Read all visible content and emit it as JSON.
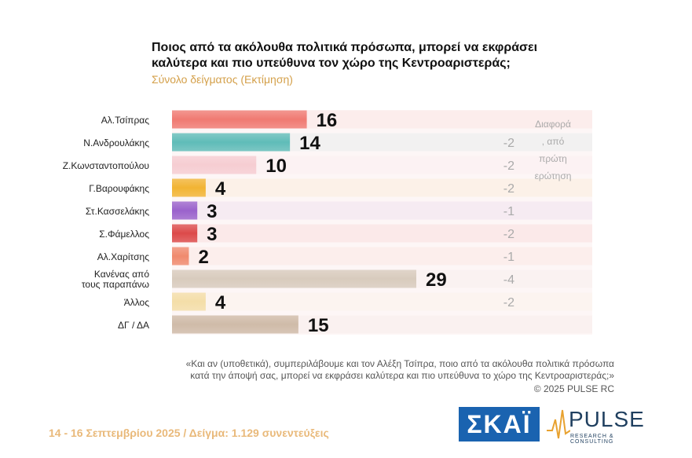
{
  "header": {
    "title_line1": "Ποιος από τα ακόλουθα πολιτικά πρόσωπα, μπορεί να εκφράσει",
    "title_line2": "καλύτερα και πιο υπεύθυνα τον χώρο της Κεντροαριστεράς;",
    "subtitle": "Σύνολο δείγματος   (Εκτίμηση)"
  },
  "chart_data": {
    "type": "bar",
    "orientation": "horizontal",
    "categories": [
      "Αλ.Τσίπρας",
      "Ν.Ανδρουλάκης",
      "Ζ.Κωνσταντοπούλου",
      "Γ.Βαρουφάκης",
      "Στ.Κασσελάκης",
      "Σ.Φάμελλος",
      "Αλ.Χαρίτσης",
      "Κανένας από τους παραπάνω",
      "Άλλος",
      "ΔΓ / ΔΑ"
    ],
    "category_lines": [
      [
        "Αλ.Τσίπρας"
      ],
      [
        "Ν.Ανδρουλάκης"
      ],
      [
        "Ζ.Κωνσταντοπούλου"
      ],
      [
        "Γ.Βαρουφάκης"
      ],
      [
        "Στ.Κασσελάκης"
      ],
      [
        "Σ.Φάμελλος"
      ],
      [
        "Αλ.Χαρίτσης"
      ],
      [
        "Κανένας από",
        "τους παραπάνω"
      ],
      [
        "Άλλος"
      ],
      [
        "ΔΓ / ΔΑ"
      ]
    ],
    "values": [
      16,
      14,
      10,
      4,
      3,
      3,
      2,
      29,
      4,
      15
    ],
    "bar_colors": [
      "#f07a72",
      "#5fbcb8",
      "#f6cdd2",
      "#f2b433",
      "#9a62cc",
      "#dc4a4a",
      "#f08a6e",
      "#d8cbbd",
      "#f4dea8",
      "#cfbba8"
    ],
    "diff_header_lines": [
      "Διαφορά",
      ", από",
      "πρώτη",
      "ερώτηση"
    ],
    "diff_values": [
      "",
      "-2",
      "-2",
      "-2",
      "-1",
      "-2",
      "-1",
      "-4",
      "-2",
      ""
    ],
    "xlim": [
      0,
      29
    ]
  },
  "footnote": {
    "line1": "«Και αν (υποθετικά), συμπεριλάβουμε και τον Αλέξη Τσίπρα, ποιο από τα ακόλουθα πολιτικά πρόσωπα",
    "line2": "κατά την άποψή σας, μπορεί να εκφράσει καλύτερα και πιο υπεύθυνα το χώρο της Κεντροαριστεράς;»",
    "copyright": "©  2025  PULSE RC"
  },
  "survey_info": "14 - 16 Σεπτεμβρίου 2025  /  Δείγμα:  1.129 συνεντεύξεις",
  "logos": {
    "skai": "ΣΚΑΪ",
    "pulse": "PULSE",
    "pulse_tagline": "RESEARCH & CONSULTING",
    "pulse_icon": "pulse-wave-icon"
  }
}
